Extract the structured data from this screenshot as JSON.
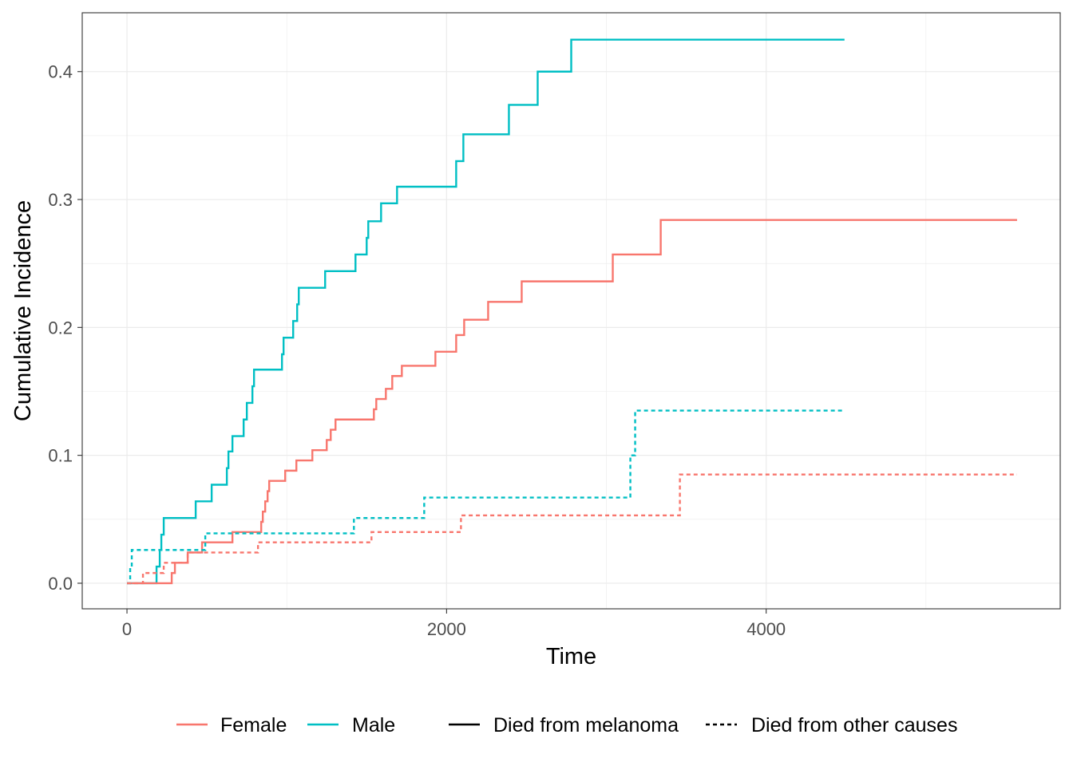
{
  "chart_data": {
    "type": "line",
    "title": "",
    "xlabel": "Time",
    "ylabel": "Cumulative Incidence",
    "xlim": [
      -280,
      5840
    ],
    "ylim": [
      -0.02,
      0.446
    ],
    "x_ticks": [
      0,
      2000,
      4000
    ],
    "x_tick_labels": [
      "0",
      "2000",
      "4000"
    ],
    "x_minor_ticks": [
      1000,
      3000,
      5000
    ],
    "y_ticks": [
      0.0,
      0.1,
      0.2,
      0.3,
      0.4
    ],
    "y_tick_labels": [
      "0.0",
      "0.1",
      "0.2",
      "0.3",
      "0.4"
    ],
    "y_minor_ticks": [
      0.05,
      0.15,
      0.25,
      0.35
    ],
    "grid": true,
    "legend_position": "bottom",
    "colors": {
      "Female": "#F8766D",
      "Male": "#00BFC4"
    },
    "legend": {
      "groups": [
        {
          "label": "Female",
          "color": "#F8766D",
          "style": "solid"
        },
        {
          "label": "Male",
          "color": "#00BFC4",
          "style": "solid"
        }
      ],
      "linetypes": [
        {
          "label": "Died from melanoma",
          "style": "solid"
        },
        {
          "label": "Died from other causes",
          "style": "dashed"
        }
      ]
    },
    "series": [
      {
        "name": "Male - Died from melanoma",
        "group": "Male",
        "linetype": "solid",
        "steps": [
          [
            0,
            0
          ],
          [
            185,
            0.013
          ],
          [
            205,
            0.026
          ],
          [
            215,
            0.038
          ],
          [
            230,
            0.051
          ],
          [
            430,
            0.064
          ],
          [
            530,
            0.077
          ],
          [
            625,
            0.09
          ],
          [
            635,
            0.103
          ],
          [
            660,
            0.115
          ],
          [
            730,
            0.128
          ],
          [
            750,
            0.141
          ],
          [
            785,
            0.154
          ],
          [
            795,
            0.167
          ],
          [
            970,
            0.179
          ],
          [
            980,
            0.192
          ],
          [
            1040,
            0.205
          ],
          [
            1065,
            0.218
          ],
          [
            1075,
            0.231
          ],
          [
            1240,
            0.244
          ],
          [
            1430,
            0.257
          ],
          [
            1500,
            0.27
          ],
          [
            1510,
            0.283
          ],
          [
            1590,
            0.297
          ],
          [
            1690,
            0.31
          ],
          [
            2060,
            0.33
          ],
          [
            2105,
            0.351
          ],
          [
            2390,
            0.374
          ],
          [
            2570,
            0.4
          ],
          [
            2780,
            0.425
          ],
          [
            4490,
            0.425
          ]
        ]
      },
      {
        "name": "Female - Died from melanoma",
        "group": "Female",
        "linetype": "solid",
        "steps": [
          [
            0,
            0
          ],
          [
            280,
            0.008
          ],
          [
            300,
            0.016
          ],
          [
            380,
            0.024
          ],
          [
            470,
            0.032
          ],
          [
            660,
            0.04
          ],
          [
            840,
            0.048
          ],
          [
            850,
            0.056
          ],
          [
            865,
            0.064
          ],
          [
            880,
            0.072
          ],
          [
            890,
            0.08
          ],
          [
            990,
            0.088
          ],
          [
            1060,
            0.096
          ],
          [
            1160,
            0.104
          ],
          [
            1250,
            0.112
          ],
          [
            1275,
            0.12
          ],
          [
            1305,
            0.128
          ],
          [
            1545,
            0.136
          ],
          [
            1560,
            0.144
          ],
          [
            1620,
            0.152
          ],
          [
            1660,
            0.162
          ],
          [
            1720,
            0.17
          ],
          [
            1930,
            0.181
          ],
          [
            2060,
            0.194
          ],
          [
            2110,
            0.206
          ],
          [
            2260,
            0.22
          ],
          [
            2470,
            0.236
          ],
          [
            3040,
            0.257
          ],
          [
            3340,
            0.284
          ],
          [
            5570,
            0.284
          ]
        ]
      },
      {
        "name": "Male - Died from other causes",
        "group": "Male",
        "linetype": "dashed",
        "steps": [
          [
            0,
            0
          ],
          [
            20,
            0.013
          ],
          [
            30,
            0.026
          ],
          [
            490,
            0.039
          ],
          [
            1420,
            0.051
          ],
          [
            1860,
            0.067
          ],
          [
            3150,
            0.1
          ],
          [
            3180,
            0.135
          ],
          [
            4490,
            0.135
          ]
        ]
      },
      {
        "name": "Female - Died from other causes",
        "group": "Female",
        "linetype": "dashed",
        "steps": [
          [
            0,
            0
          ],
          [
            100,
            0.008
          ],
          [
            230,
            0.016
          ],
          [
            380,
            0.024
          ],
          [
            820,
            0.032
          ],
          [
            1530,
            0.04
          ],
          [
            2090,
            0.053
          ],
          [
            3460,
            0.085
          ],
          [
            5570,
            0.085
          ]
        ]
      }
    ]
  }
}
